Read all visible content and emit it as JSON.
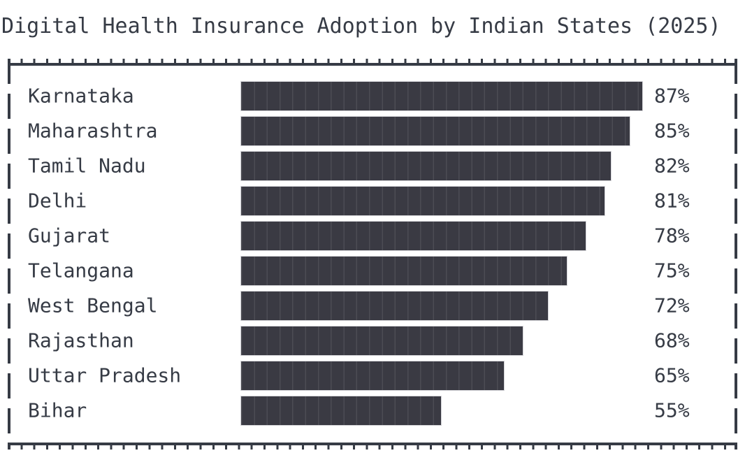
{
  "chart_data": {
    "type": "bar",
    "orientation": "horizontal",
    "title": "Digital Health Insurance Adoption by Indian States (2025)",
    "categories": [
      "Karnataka",
      "Maharashtra",
      "Tamil Nadu",
      "Delhi",
      "Gujarat",
      "Telangana",
      "West Bengal",
      "Rajasthan",
      "Uttar Pradesh",
      "Bihar"
    ],
    "values": [
      87,
      85,
      82,
      81,
      78,
      75,
      72,
      68,
      65,
      55
    ],
    "value_suffix": "%",
    "value_labels": [
      "87%",
      "85%",
      "82%",
      "81%",
      "78%",
      "75%",
      "72%",
      "68%",
      "65%",
      "55%"
    ],
    "xlabel": "",
    "ylabel": "",
    "xlim": [
      23,
      87
    ],
    "grid": false,
    "legend": false
  },
  "colors": {
    "ink": "#363b45",
    "bar": "#3a3a43",
    "bar_outline": "#d7d7db",
    "background": "#ffffff"
  }
}
